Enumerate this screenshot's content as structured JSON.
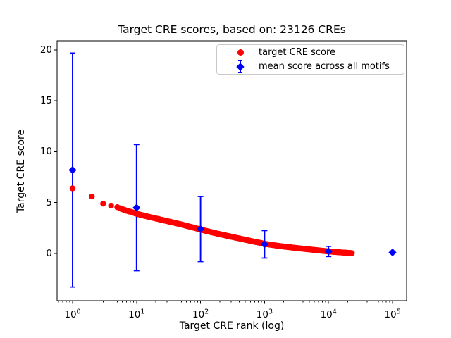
{
  "chart_data": {
    "type": "scatter",
    "title": "Target CRE scores, based on: 23126 CREs",
    "xlabel": "Target CRE rank (log)",
    "ylabel": "Target CRE score",
    "x_scale": "log",
    "xlim_log10": [
      -0.242,
      5.22
    ],
    "ylim": [
      -4.64,
      20.9
    ],
    "x_ticks": [
      {
        "value": 1,
        "base": "10",
        "exp": "0"
      },
      {
        "value": 10,
        "base": "10",
        "exp": "1"
      },
      {
        "value": 100,
        "base": "10",
        "exp": "2"
      },
      {
        "value": 1000,
        "base": "10",
        "exp": "3"
      },
      {
        "value": 10000,
        "base": "10",
        "exp": "4"
      },
      {
        "value": 100000,
        "base": "10",
        "exp": "5"
      }
    ],
    "y_ticks": [
      0,
      5,
      10,
      15,
      20
    ],
    "grid": false,
    "legend_position": "upper right",
    "n_cres": 23126,
    "series": [
      {
        "name": "target CRE score",
        "plot_type": "scatter",
        "marker": "circle",
        "color": "#ff0000",
        "n_points": 23126,
        "anchor_points": [
          [
            1,
            6.4
          ],
          [
            2,
            5.6
          ],
          [
            3,
            4.9
          ],
          [
            4,
            4.7
          ],
          [
            5,
            4.55
          ],
          [
            6,
            4.35
          ],
          [
            7,
            4.2
          ],
          [
            8,
            4.1
          ],
          [
            9,
            4.0
          ],
          [
            10,
            3.9
          ],
          [
            13,
            3.72
          ],
          [
            16,
            3.58
          ],
          [
            20,
            3.44
          ],
          [
            30,
            3.18
          ],
          [
            40,
            3.0
          ],
          [
            50,
            2.85
          ],
          [
            60,
            2.72
          ],
          [
            80,
            2.52
          ],
          [
            100,
            2.35
          ],
          [
            150,
            2.08
          ],
          [
            200,
            1.9
          ],
          [
            300,
            1.65
          ],
          [
            500,
            1.35
          ],
          [
            700,
            1.15
          ],
          [
            1000,
            0.95
          ],
          [
            1500,
            0.78
          ],
          [
            2000,
            0.68
          ],
          [
            3000,
            0.55
          ],
          [
            5000,
            0.4
          ],
          [
            7000,
            0.3
          ],
          [
            10000,
            0.2
          ],
          [
            15000,
            0.11
          ],
          [
            20000,
            0.06
          ],
          [
            23126,
            0.03
          ]
        ]
      },
      {
        "name": "mean score across all motifs",
        "plot_type": "errorbar",
        "marker": "diamond",
        "color": "#0000ff",
        "points": [
          {
            "x": 1,
            "mean": 8.2,
            "err": 11.5
          },
          {
            "x": 10,
            "mean": 4.5,
            "err": 6.2
          },
          {
            "x": 100,
            "mean": 2.4,
            "err": 3.2
          },
          {
            "x": 1000,
            "mean": 0.9,
            "err": 1.35
          },
          {
            "x": 10000,
            "mean": 0.2,
            "err": 0.5
          },
          {
            "x": 100000,
            "mean": 0.1,
            "err": 0.12
          }
        ]
      }
    ]
  }
}
